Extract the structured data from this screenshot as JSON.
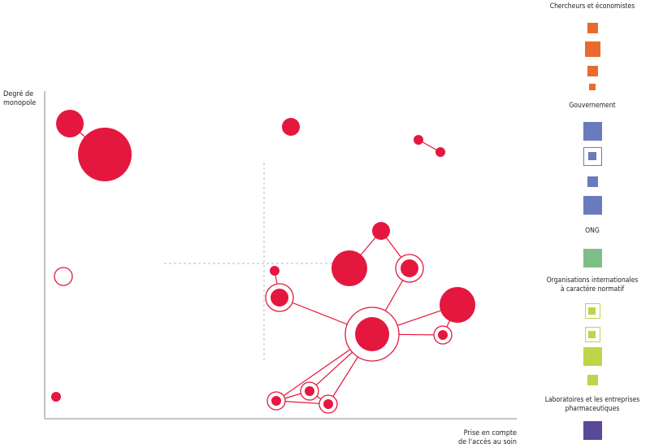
{
  "axes": {
    "y_label_line1": "Degré de",
    "y_label_line2": "monopole",
    "x_label_line1": "Prise en compte",
    "x_label_line2": "de l'accès au soin"
  },
  "colors": {
    "node": "#e4173e",
    "axis": "#888888",
    "guide": "#bbbbbb",
    "researchers": "#ea6a2e",
    "government": "#6a7bbd",
    "ngo": "#7dbf86",
    "intl_orgs": "#bfd44a",
    "industry": "#5a4898"
  },
  "legend": {
    "groups": [
      {
        "name": "Chercheurs et économistes",
        "color_key": "researchers",
        "items": [
          {
            "size": "s",
            "style": "fill"
          },
          {
            "size": "m",
            "style": "fill"
          },
          {
            "size": "s",
            "style": "fill"
          },
          {
            "size": "xs",
            "style": "fill"
          }
        ]
      },
      {
        "name": "Gouvernement",
        "color_key": "government",
        "items": [
          {
            "size": "l",
            "style": "fill"
          },
          {
            "size": "l",
            "style": "ring"
          },
          {
            "size": "s",
            "style": "fill"
          },
          {
            "size": "l",
            "style": "fill"
          }
        ]
      },
      {
        "name": "ONG",
        "color_key": "ngo",
        "items": [
          {
            "size": "l",
            "style": "fill"
          }
        ]
      },
      {
        "name_line1": "Organisations internationales",
        "name_line2": "à caractère normatif",
        "color_key": "intl_orgs",
        "items": [
          {
            "size": "m",
            "style": "ring"
          },
          {
            "size": "m",
            "style": "ring"
          },
          {
            "size": "l",
            "style": "fill"
          },
          {
            "size": "s",
            "style": "fill"
          }
        ]
      },
      {
        "name_line1": "Laboratoires et les entreprises",
        "name_line2": "pharmaceutiques",
        "color_key": "industry",
        "items": [
          {
            "size": "l",
            "style": "fill"
          }
        ]
      }
    ]
  },
  "nodes": [
    {
      "id": "a",
      "size": "m",
      "style": "fill"
    },
    {
      "id": "b",
      "size": "xl",
      "style": "fill"
    },
    {
      "id": "c",
      "size": "s",
      "style": "fill"
    },
    {
      "id": "d",
      "size": "xs",
      "style": "fill"
    },
    {
      "id": "e",
      "size": "xs",
      "style": "fill"
    },
    {
      "id": "f",
      "size": "s",
      "style": "fill"
    },
    {
      "id": "g",
      "size": "l",
      "style": "fill"
    },
    {
      "id": "h",
      "size": "m",
      "style": "ring"
    },
    {
      "id": "i",
      "size": "xs",
      "style": "fill"
    },
    {
      "id": "j",
      "size": "s",
      "style": "open"
    },
    {
      "id": "k",
      "size": "m",
      "style": "ring"
    },
    {
      "id": "l",
      "size": "l",
      "style": "fill"
    },
    {
      "id": "m",
      "size": "xl",
      "style": "ring"
    },
    {
      "id": "n",
      "size": "s",
      "style": "ring"
    },
    {
      "id": "o",
      "size": "xs",
      "style": "fill"
    },
    {
      "id": "p",
      "size": "s",
      "style": "ring"
    },
    {
      "id": "q",
      "size": "s",
      "style": "ring"
    },
    {
      "id": "r",
      "size": "s",
      "style": "ring"
    }
  ],
  "edges": [
    [
      "a",
      "b"
    ],
    [
      "d",
      "e"
    ],
    [
      "f",
      "g"
    ],
    [
      "f",
      "h"
    ],
    [
      "i",
      "k"
    ],
    [
      "k",
      "m"
    ],
    [
      "h",
      "m"
    ],
    [
      "l",
      "m"
    ],
    [
      "l",
      "n"
    ],
    [
      "m",
      "n"
    ],
    [
      "m",
      "p"
    ],
    [
      "m",
      "q"
    ],
    [
      "m",
      "r"
    ],
    [
      "p",
      "q"
    ],
    [
      "p",
      "r"
    ],
    [
      "q",
      "r"
    ]
  ]
}
